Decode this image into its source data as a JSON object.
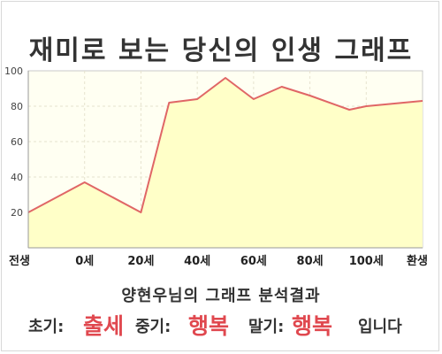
{
  "title": "재미로 보는 당신의 인생 그래프",
  "subtitle": "양현우님의 그래프 분석결과",
  "result": {
    "early_label": "초기:",
    "early_value": "출세",
    "mid_label": "중기:",
    "mid_value": "행복",
    "late_label": "말기:",
    "late_value": "행복",
    "ending": "입니다"
  },
  "colors": {
    "accent": "#e0484f",
    "line": "#e06666",
    "fill": "#ffffc8",
    "plot_bg": "#fffff2",
    "grid": "#e6e3cf",
    "text": "#333333"
  },
  "chart_data": {
    "type": "area",
    "title": "재미로 보는 당신의 인생 그래프",
    "xlabel": "",
    "ylabel": "",
    "ylim": [
      0,
      100
    ],
    "yticks": [
      20,
      40,
      60,
      80,
      100
    ],
    "categories": [
      "전생",
      "0세",
      "20세",
      "40세",
      "60세",
      "80세",
      "100세",
      "환생"
    ],
    "x": [
      0,
      10,
      20,
      25,
      30,
      35,
      40,
      45,
      50,
      57,
      60,
      70
    ],
    "values": [
      20,
      37,
      20,
      82,
      84,
      96,
      84,
      91,
      86,
      78,
      80,
      83
    ],
    "grid": true,
    "legend": "none"
  }
}
